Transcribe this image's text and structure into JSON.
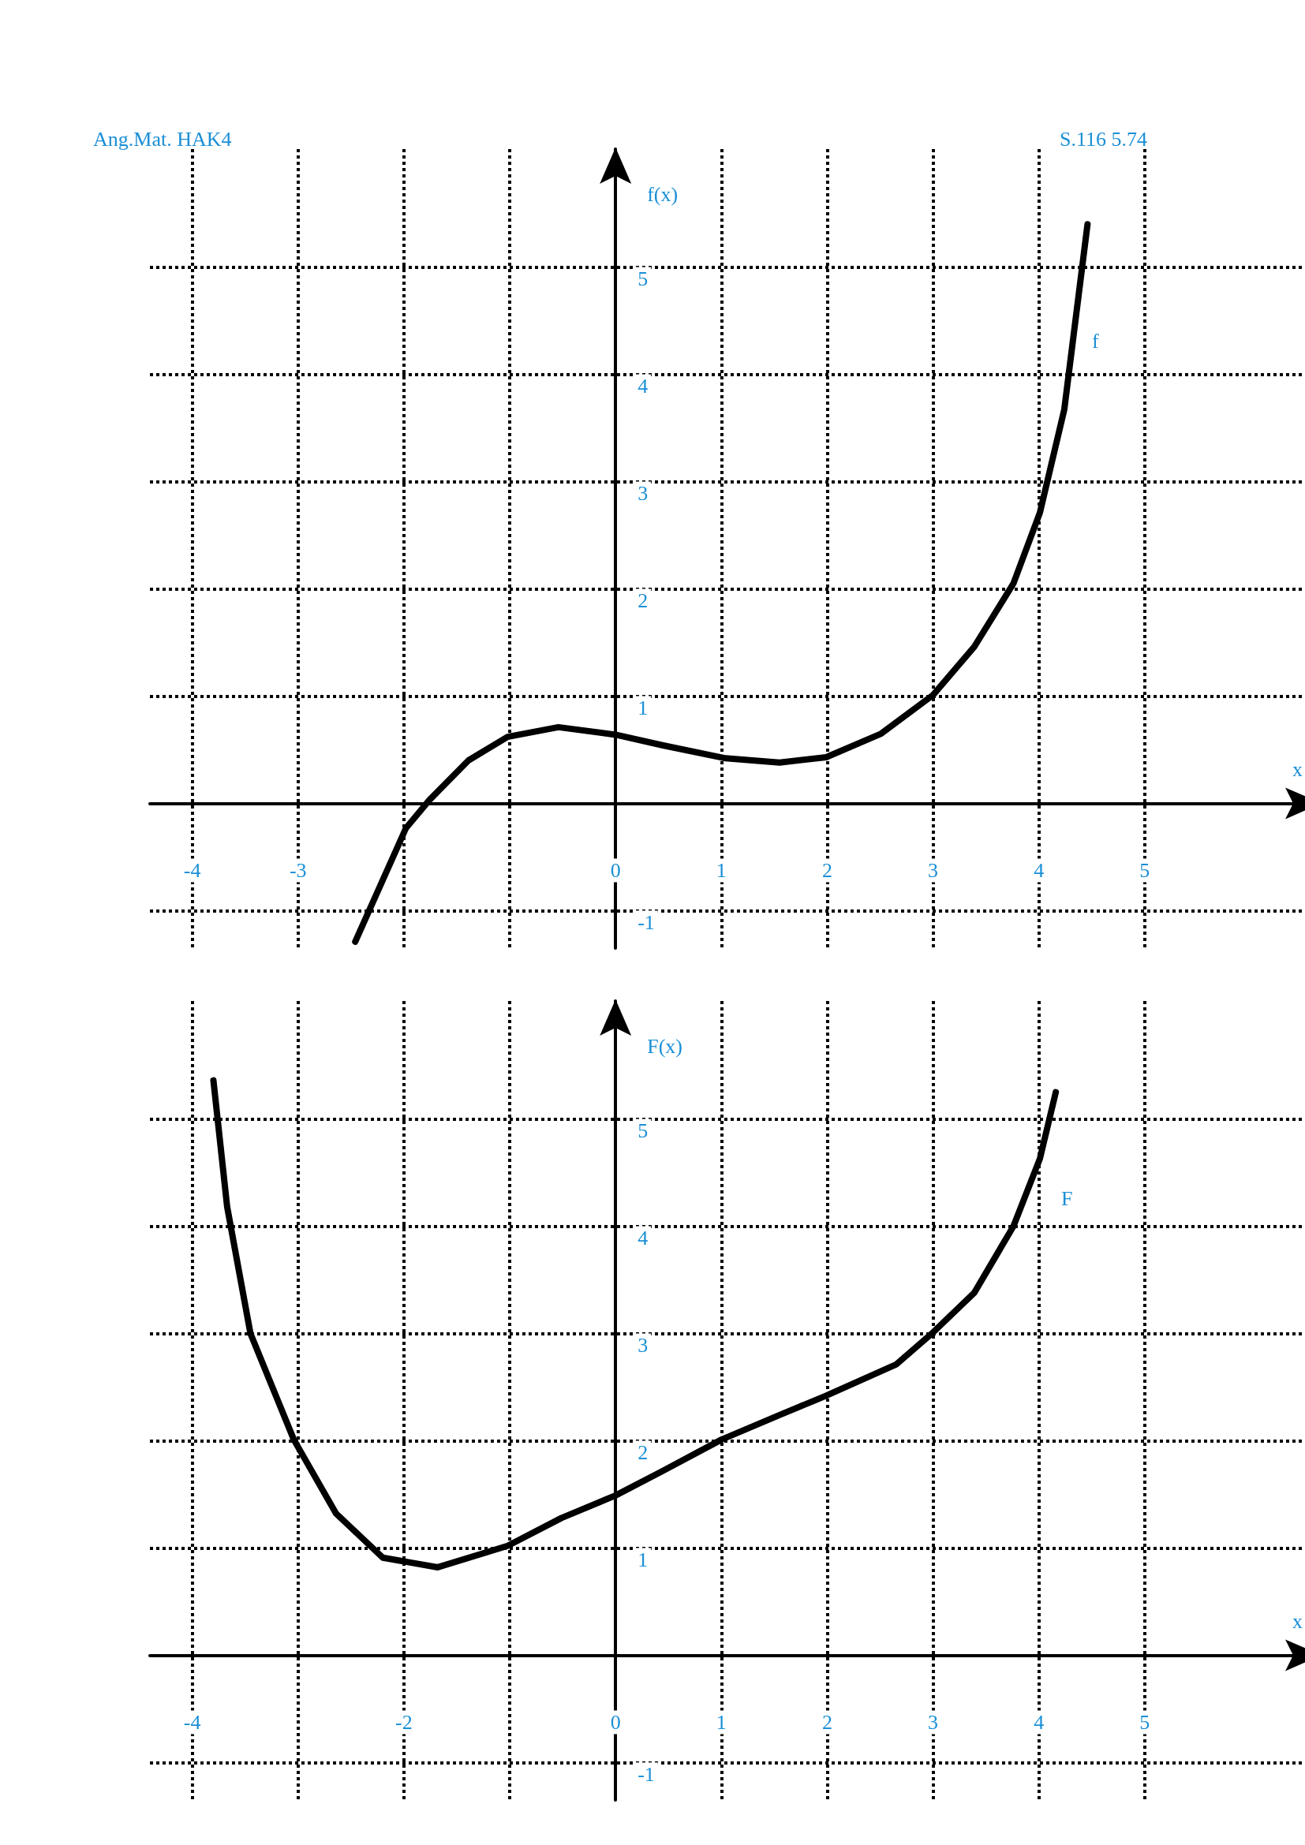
{
  "chart_data": [
    {
      "type": "line",
      "annotations": [
        "Ang.Mat. HAK4",
        "S.116 5.74",
        "f"
      ],
      "xlabel": "x",
      "ylabel": "f(x)",
      "x": [
        -2.46,
        -1.98,
        -1.76,
        -1.39,
        -1.02,
        -0.54,
        0,
        0.45,
        1.04,
        1.55,
        1.99,
        2.51,
        3.0,
        3.39,
        3.76,
        4.01,
        4.24,
        4.38,
        4.46
      ],
      "series": [
        {
          "color": "#000000",
          "values": [
            -1.29,
            -0.23,
            0.03,
            0.4,
            0.62,
            0.71,
            0.64,
            0.54,
            0.42,
            0.38,
            0.43,
            0.65,
            1.01,
            1.46,
            2.05,
            2.71,
            3.67,
            4.77,
            5.4
          ]
        }
      ],
      "xlim": [
        -4.4,
        6.5
      ],
      "ylim": [
        -1.35,
        6.1
      ],
      "xticks": [
        -4,
        -3,
        {
          "value": -2,
          "label": null
        },
        {
          "value": -1,
          "label": null
        },
        0,
        1,
        2,
        3,
        4,
        5
      ],
      "yticks": [
        -1,
        {
          "value": 0,
          "label": null
        },
        1,
        2,
        3,
        4,
        5
      ],
      "grid": true,
      "line_style": "solid"
    },
    {
      "type": "line",
      "annotations": [
        "F"
      ],
      "xlabel": "x",
      "ylabel": "F(x)",
      "x": [
        -3.8,
        -3.67,
        -3.45,
        -3.04,
        -2.64,
        -2.2,
        -1.68,
        -1.02,
        -0.51,
        0,
        0.45,
        1.0,
        1.55,
        1.99,
        2.65,
        3.0,
        3.39,
        3.76,
        4.01,
        4.16
      ],
      "series": [
        {
          "color": "#000000",
          "values": [
            5.36,
            4.18,
            3.0,
            2.01,
            1.32,
            0.91,
            0.82,
            1.02,
            1.28,
            1.49,
            1.72,
            2.01,
            2.24,
            2.42,
            2.71,
            3.01,
            3.38,
            4.0,
            4.63,
            5.25
          ]
        }
      ],
      "xlim": [
        -4.4,
        6.5
      ],
      "ylim": [
        -1.35,
        6.1
      ],
      "xticks": [
        -4,
        {
          "value": -3,
          "label": null
        },
        -2,
        {
          "value": -1,
          "label": null
        },
        0,
        1,
        2,
        3,
        4,
        5
      ],
      "yticks": [
        -1,
        {
          "value": 0,
          "label": null
        },
        1,
        2,
        3,
        4,
        5
      ],
      "grid": true,
      "line_style": "solid"
    }
  ]
}
